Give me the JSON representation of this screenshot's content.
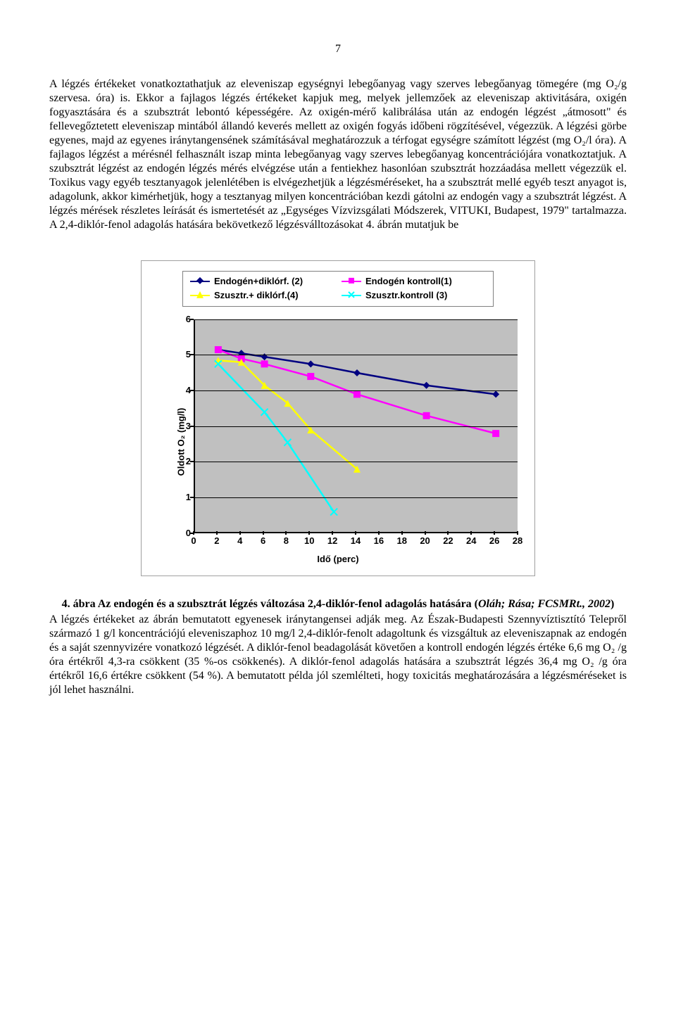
{
  "page_number": "7",
  "paragraph1": "A légzés értékeket vonatkoztathatjuk az eleveniszap egységnyi lebegőanyag vagy szerves lebegőanyag tömegére (mg O₂/g szervesa. óra) is. Ekkor a fajlagos légzés értékeket kapjuk meg, melyek jellemzőek az eleveniszap aktivitására, oxigén fogyasztására és a szubsztrát lebontó képességére. Az oxigén-mérő kalibrálása után az endogén légzést „átmosott\" és fellevegőztetett eleveniszap mintából állandó keverés mellett az oxigén fogyás időbeni rögzítésével, végezzük. A légzési görbe egyenes, majd az egyenes iránytangensének számításával meghatározzuk a térfogat egységre számított légzést (mg O₂/l óra). A fajlagos légzést a mérésnél felhasznált iszap minta lebegőanyag vagy szerves lebegőanyag koncentrációjára vonatkoztatjuk. A szubsztrát légzést az endogén légzés mérés elvégzése után a fentiekhez hasonlóan szubsztrát hozzáadása mellett végezzük el. Toxikus vagy egyéb tesztanyagok jelenlétében is elvégezhetjük a légzésméréseket, ha a szubsztrát mellé egyéb teszt anyagot is, adagolunk, akkor kimérhetjük, hogy a tesztanyag milyen koncentrációban kezdi gátolni az endogén vagy a szubsztrát légzést. A légzés mérések részletes leírását és ismertetését az „Egységes Vízvizsgálati Módszerek, VITUKI, Budapest, 1979\" tartalmazza. A 2,4-diklór-fenol adagolás hatására bekövetkező légzésválltozásokat 4. ábrán mutatjuk be",
  "chart": {
    "type": "line",
    "background": "#c0c0c0",
    "grid_color": "#000000",
    "axis_color": "#000000",
    "font": "Arial",
    "font_size": 13,
    "xlabel": "Idő (perc)",
    "ylabel": "Oldott O₂ (mg/l)",
    "xlim": [
      0,
      28
    ],
    "ylim": [
      0,
      6
    ],
    "xticks": [
      0,
      2,
      4,
      6,
      8,
      10,
      12,
      14,
      16,
      18,
      20,
      22,
      24,
      26,
      28
    ],
    "yticks": [
      0,
      1,
      2,
      3,
      4,
      5,
      6
    ],
    "legend": [
      {
        "label": "Endogén+diklórf. (2)",
        "color": "#000080",
        "marker": "diamond"
      },
      {
        "label": "Endogén kontroll(1)",
        "color": "#ff00ff",
        "marker": "square"
      },
      {
        "label": "Szusztr.+ diklórf.(4)",
        "color": "#ffff00",
        "marker": "triangle"
      },
      {
        "label": "Szusztr.kontroll (3)",
        "color": "#00ffff",
        "marker": "x"
      }
    ],
    "series": [
      {
        "name": "endogen_diklorf_2",
        "color": "#000080",
        "marker": "diamond",
        "line_width": 2.5,
        "points": [
          [
            2,
            5.15
          ],
          [
            4,
            5.05
          ],
          [
            6,
            4.95
          ],
          [
            10,
            4.75
          ],
          [
            14,
            4.5
          ],
          [
            20,
            4.15
          ],
          [
            26,
            3.9
          ]
        ]
      },
      {
        "name": "endogen_kontroll_1",
        "color": "#ff00ff",
        "marker": "square",
        "line_width": 2.5,
        "points": [
          [
            2,
            5.15
          ],
          [
            4,
            4.9
          ],
          [
            6,
            4.75
          ],
          [
            10,
            4.4
          ],
          [
            14,
            3.9
          ],
          [
            20,
            3.3
          ],
          [
            26,
            2.8
          ]
        ]
      },
      {
        "name": "szusztr_diklorf_4",
        "color": "#ffff00",
        "marker": "triangle",
        "line_width": 2.5,
        "points": [
          [
            2,
            4.85
          ],
          [
            4,
            4.8
          ],
          [
            6,
            4.15
          ],
          [
            8,
            3.65
          ],
          [
            10,
            2.9
          ],
          [
            14,
            1.8
          ]
        ]
      },
      {
        "name": "szusztr_kontroll_3",
        "color": "#00ffff",
        "marker": "x",
        "line_width": 2.5,
        "points": [
          [
            2,
            4.75
          ],
          [
            6,
            3.4
          ],
          [
            8,
            2.55
          ],
          [
            12,
            0.6
          ]
        ]
      }
    ]
  },
  "caption_bold": "4. ábra Az endogén és a szubsztrát légzés változása 2,4-diklór-fenol adagolás hatására (",
  "caption_italic": "Oláh; Rása; FCSMRt., 2002",
  "caption_close": ")",
  "paragraph2": "A légzés értékeket az ábrán bemutatott egyenesek iránytangensei adják meg. Az Észak-Budapesti Szennyvíztisztító Telepről származó 1 g/l koncentrációjú eleveniszaphoz 10 mg/l 2,4-diklór-fenolt adagoltunk és vizsgáltuk az eleveniszapnak az endogén és a saját szennyvizére vonatkozó légzését. A diklór-fenol beadagolását követően a kontroll endogén légzés értéke 6,6 mg O₂ /g óra értékről 4,3-ra csökkent (35 %-os csökkenés). A diklór-fenol adagolás hatására a szubsztrát légzés 36,4 mg O₂ /g óra értékről 16,6 értékre csökkent (54 %). A bemutatott példa jól szemlélteti, hogy toxicitás meghatározására a légzésméréseket is jól lehet használni."
}
